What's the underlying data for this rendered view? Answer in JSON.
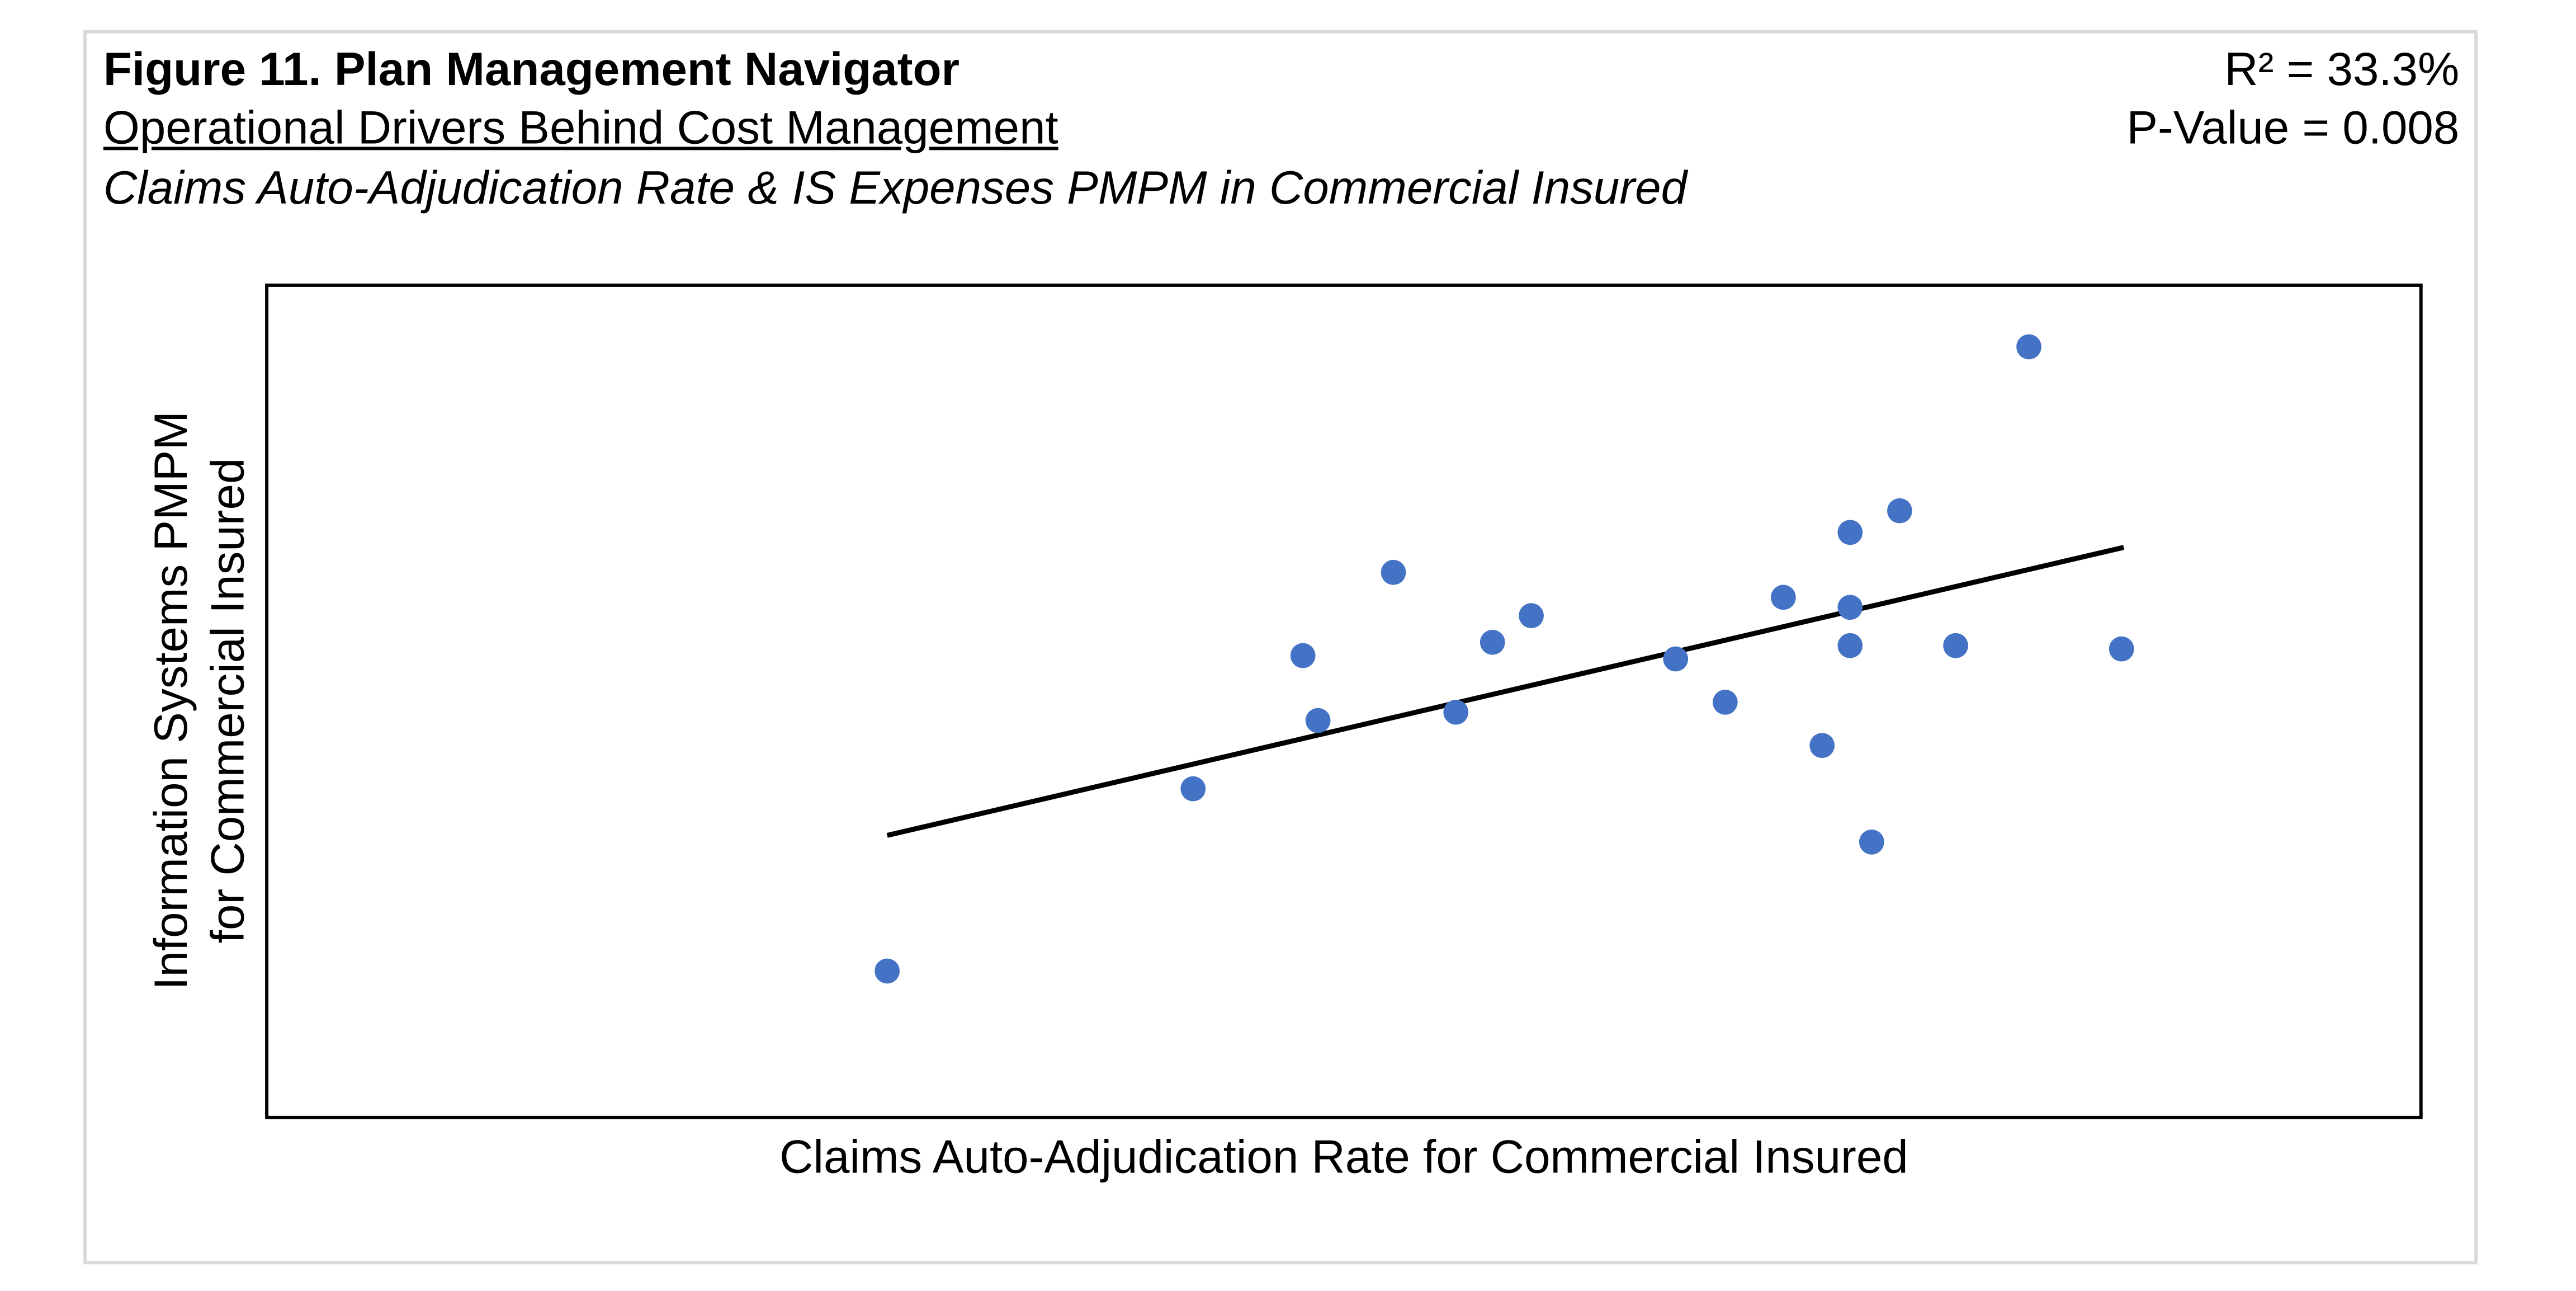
{
  "header": {
    "title": "Figure 11. Plan Management Navigator",
    "subtitle": "Operational Drivers Behind Cost Management",
    "description": "Claims Auto-Adjudication Rate & IS Expenses PMPM in Commercial Insured",
    "r_squared": "R² = 33.3%",
    "p_value": "P-Value = 0.008"
  },
  "chart_data": {
    "type": "scatter",
    "xlabel": "Claims Auto-Adjudication Rate for Commercial Insured",
    "ylabel_lines": [
      "Information Systems PMPM",
      "for Commercial Insured"
    ],
    "xlim": [
      0,
      100
    ],
    "ylim": [
      0,
      100
    ],
    "grid": false,
    "tick_labels": false,
    "point_color": "#4472c4",
    "points": [
      [
        28.8,
        17.6
      ],
      [
        43.0,
        39.5
      ],
      [
        48.1,
        55.5
      ],
      [
        48.8,
        47.7
      ],
      [
        52.3,
        65.5
      ],
      [
        55.2,
        48.7
      ],
      [
        56.9,
        57.1
      ],
      [
        58.7,
        60.3
      ],
      [
        65.4,
        55.1
      ],
      [
        67.7,
        49.9
      ],
      [
        70.4,
        62.5
      ],
      [
        72.2,
        44.7
      ],
      [
        73.5,
        70.3
      ],
      [
        73.5,
        61.3
      ],
      [
        73.5,
        56.7
      ],
      [
        74.5,
        33.1
      ],
      [
        75.8,
        72.9
      ],
      [
        78.4,
        56.7
      ],
      [
        81.8,
        92.6
      ],
      [
        86.1,
        56.3
      ]
    ],
    "trendline": {
      "x": [
        28.8,
        86.2
      ],
      "y": [
        33.9,
        68.5
      ],
      "color": "#000000"
    }
  }
}
